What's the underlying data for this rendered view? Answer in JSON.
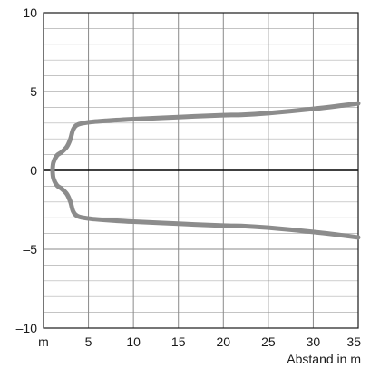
{
  "chart_data": {
    "type": "line",
    "title": "",
    "xlabel": "Abstand in m",
    "ylabel": "",
    "x_origin_label": "m",
    "xlim": [
      0,
      35
    ],
    "ylim": [
      -10,
      10
    ],
    "x_ticks": [
      5,
      10,
      15,
      20,
      25,
      30,
      35
    ],
    "x_tick_labels": [
      "5",
      "10",
      "15",
      "20",
      "25",
      "30",
      "35"
    ],
    "y_ticks": [
      10,
      5,
      0,
      -5,
      -10
    ],
    "y_tick_labels": [
      "10",
      "5",
      "0",
      "–5",
      "–10"
    ],
    "grid": true,
    "x_minor_step": 5,
    "y_minor_step": 1,
    "zero_line": true,
    "colors": {
      "series": "#8c8c8c",
      "grid": "#8a8a8a",
      "frame": "#1a1a1a",
      "zero": "#000000"
    },
    "series": [
      {
        "values_upper": [
          [
            1.0,
            0.0
          ],
          [
            1.1,
            0.5
          ],
          [
            1.5,
            0.95
          ],
          [
            2.0,
            1.15
          ],
          [
            2.6,
            1.5
          ],
          [
            3.0,
            2.0
          ],
          [
            3.3,
            2.6
          ],
          [
            3.8,
            2.9
          ],
          [
            5.0,
            3.05
          ],
          [
            7.0,
            3.15
          ],
          [
            10.0,
            3.25
          ],
          [
            15.0,
            3.38
          ],
          [
            20.0,
            3.5
          ],
          [
            22.0,
            3.52
          ],
          [
            25.0,
            3.63
          ],
          [
            30.0,
            3.9
          ],
          [
            33.0,
            4.1
          ],
          [
            35.0,
            4.25
          ]
        ],
        "values_lower": [
          [
            1.0,
            0.0
          ],
          [
            1.1,
            -0.5
          ],
          [
            1.5,
            -0.95
          ],
          [
            2.0,
            -1.15
          ],
          [
            2.6,
            -1.5
          ],
          [
            3.0,
            -2.0
          ],
          [
            3.3,
            -2.6
          ],
          [
            3.8,
            -2.9
          ],
          [
            5.0,
            -3.05
          ],
          [
            7.0,
            -3.15
          ],
          [
            10.0,
            -3.25
          ],
          [
            15.0,
            -3.38
          ],
          [
            20.0,
            -3.5
          ],
          [
            22.0,
            -3.52
          ],
          [
            25.0,
            -3.63
          ],
          [
            30.0,
            -3.9
          ],
          [
            33.0,
            -4.1
          ],
          [
            35.0,
            -4.25
          ]
        ]
      }
    ]
  }
}
